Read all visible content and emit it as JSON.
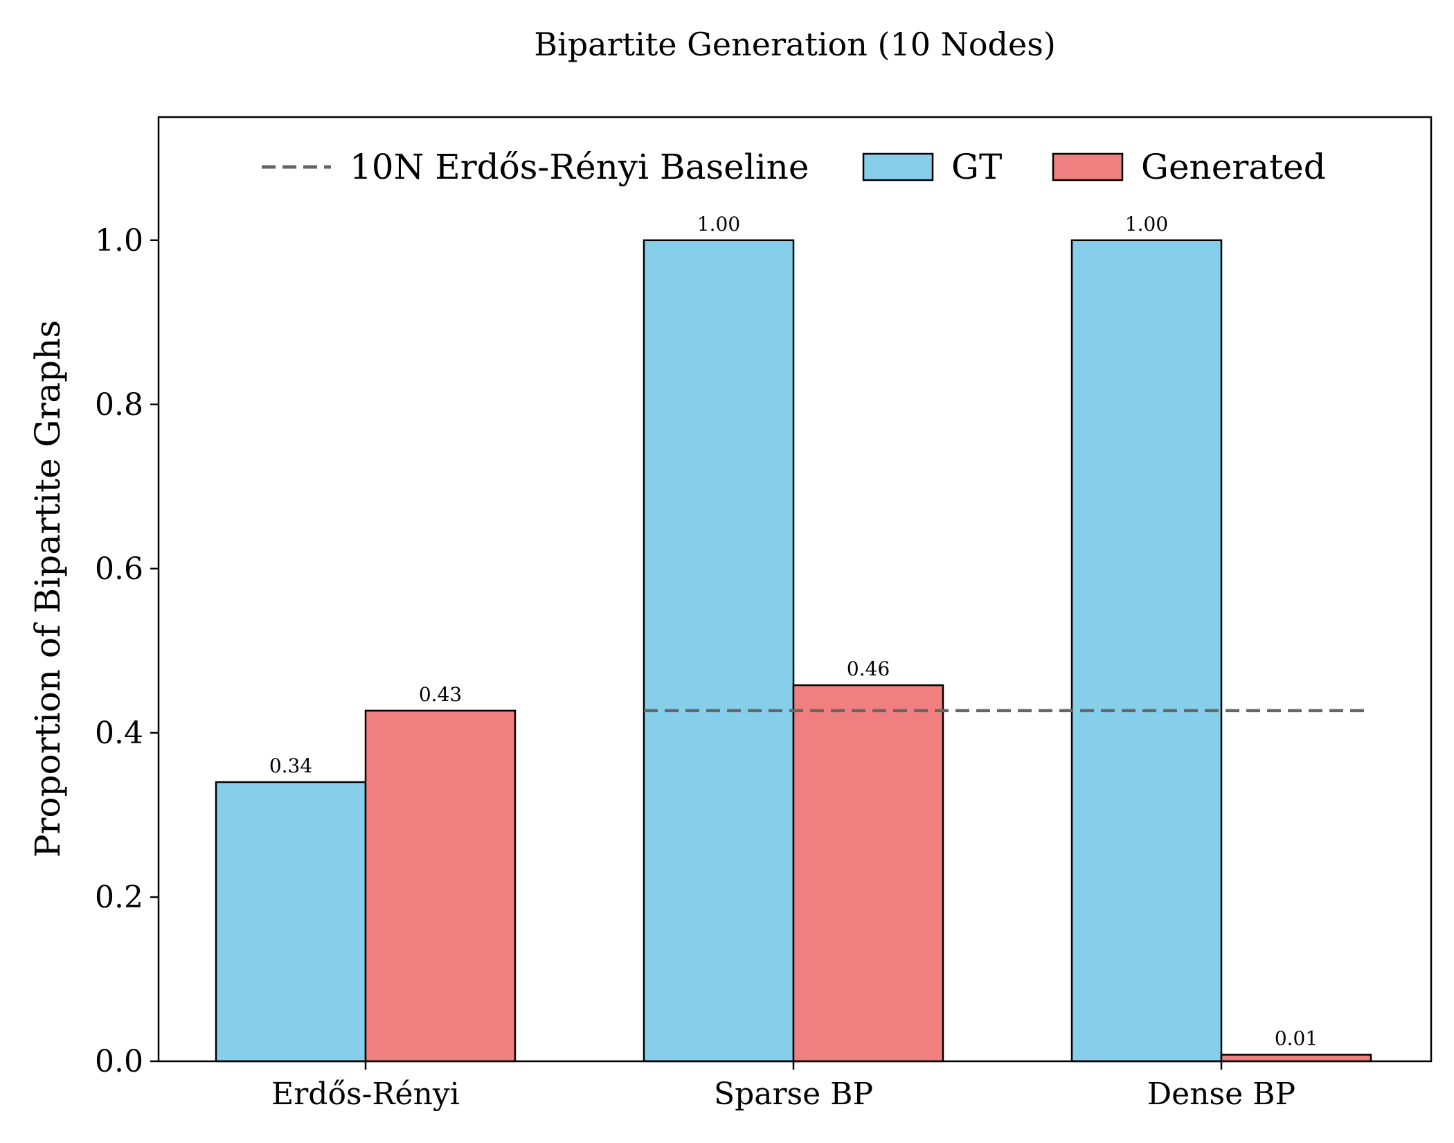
{
  "chart_data": {
    "type": "bar",
    "title": "Bipartite Generation (10 Nodes)",
    "xlabel": "",
    "ylabel": "Proportion of Bipartite Graphs",
    "ylim": [
      0,
      1.15
    ],
    "yticks": [
      0.0,
      0.2,
      0.4,
      0.6,
      0.8,
      1.0
    ],
    "ytick_labels": [
      "0.0",
      "0.2",
      "0.4",
      "0.6",
      "0.8",
      "1.0"
    ],
    "categories": [
      "Erdős-Rényi",
      "Sparse BP",
      "Dense BP"
    ],
    "series": [
      {
        "name": "GT",
        "color": "#87CEEB",
        "values": [
          0.34,
          1.0,
          1.0
        ],
        "labels": [
          "0.34",
          "1.00",
          "1.00"
        ]
      },
      {
        "name": "Generated",
        "color": "#F08080",
        "values": [
          0.427,
          0.458,
          0.008
        ],
        "labels": [
          "0.43",
          "0.46",
          "0.01"
        ]
      }
    ],
    "baseline": {
      "name": "10N Erdős-Rényi Baseline",
      "value": 0.427,
      "color": "#666666",
      "style": "dashed",
      "x_start_category": "Sparse BP"
    },
    "legend_position": "upper center",
    "grid": false
  }
}
